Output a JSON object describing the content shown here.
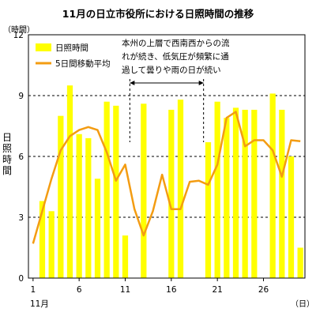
{
  "chart_data": {
    "type": "bar",
    "title": "11月の日立市役所における日照時間の推移",
    "y_unit": "（時間）",
    "ylabel": "日照時間",
    "x_unit": "（日）",
    "month_label": "11月",
    "ylim": [
      0,
      12
    ],
    "yticks": [
      0,
      3,
      6,
      9,
      12
    ],
    "xticks": [
      1,
      6,
      11,
      16,
      21,
      26
    ],
    "x": [
      1,
      2,
      3,
      4,
      5,
      6,
      7,
      8,
      9,
      10,
      11,
      12,
      13,
      14,
      15,
      16,
      17,
      18,
      19,
      20,
      21,
      22,
      23,
      24,
      25,
      26,
      27,
      28,
      29,
      30
    ],
    "series": [
      {
        "name": "日照時間",
        "type": "bar",
        "color": "#ffff00",
        "values": [
          0,
          3.8,
          3.3,
          8.0,
          9.5,
          7.1,
          6.9,
          4.9,
          8.7,
          8.5,
          2.1,
          0,
          8.6,
          0,
          0,
          8.3,
          8.8,
          0,
          0,
          6.7,
          8.7,
          7.9,
          8.4,
          8.3,
          8.3,
          0,
          9.1,
          8.3,
          6.0,
          1.5
        ]
      },
      {
        "name": "5日間移動平均",
        "type": "line",
        "color": "#f39c12",
        "values": [
          1.7,
          3.3,
          4.9,
          6.3,
          7.0,
          7.3,
          7.45,
          7.3,
          6.2,
          4.8,
          5.6,
          3.4,
          2.1,
          3.3,
          5.1,
          3.4,
          3.4,
          4.75,
          4.8,
          4.6,
          5.6,
          7.9,
          8.2,
          6.5,
          6.8,
          6.8,
          6.3,
          5.0,
          6.8,
          6.75
        ]
      }
    ],
    "grid": "dashed horizontal at 3, 6, 9",
    "legend": "top-left",
    "annotation": {
      "lines": [
        "本州の上層で西南西からの流",
        "れが続き、低気圧が頻繁に通",
        "過して曇りや雨の日が続い"
      ],
      "from_day": 11,
      "to_day": 19,
      "bracket": "dashed vertical lines with arrow"
    }
  }
}
